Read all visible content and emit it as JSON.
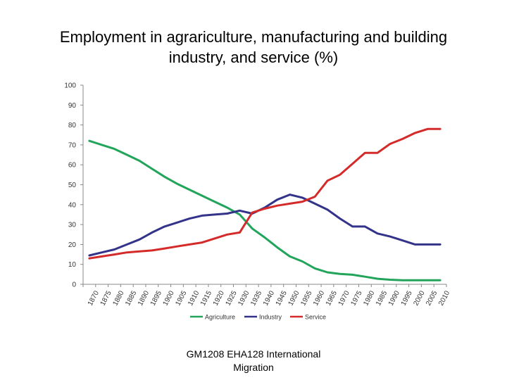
{
  "slide": {
    "title_line1": "Employment in agrariculture, manufacturing and building",
    "title_line2": "industry, and service (%)",
    "footer_line1": "GM1208 EHA128   International",
    "footer_line2": "Migration"
  },
  "chart_data": {
    "type": "line",
    "title": "Employment in agrariculture, manufacturing and building industry, and service (%)",
    "xlabel": "",
    "ylabel": "",
    "ylim": [
      0,
      100
    ],
    "yticks": [
      0,
      10,
      20,
      30,
      40,
      50,
      60,
      70,
      80,
      90,
      100
    ],
    "grid": false,
    "legend_position": "bottom",
    "x": [
      1870,
      1875,
      1880,
      1885,
      1890,
      1895,
      1900,
      1905,
      1910,
      1915,
      1920,
      1925,
      1930,
      1935,
      1940,
      1945,
      1950,
      1955,
      1960,
      1965,
      1970,
      1975,
      1980,
      1985,
      1990,
      1995,
      2000,
      2005,
      2010
    ],
    "series": [
      {
        "name": "Agriculture",
        "color": "#22a55b",
        "values": [
          72,
          70,
          68,
          65,
          62,
          58,
          54,
          50.5,
          47.5,
          44.5,
          41.5,
          38.5,
          35,
          28,
          23.5,
          18.5,
          14,
          11.5,
          8,
          6,
          5.2,
          4.8,
          3.8,
          2.8,
          2.3,
          2,
          2,
          2,
          2
        ]
      },
      {
        "name": "Industry",
        "color": "#33338a",
        "values": [
          14.5,
          16,
          17.5,
          20,
          22.5,
          26,
          29,
          31,
          33,
          34.5,
          35,
          35.5,
          37,
          35.5,
          38.5,
          42.5,
          45,
          43.5,
          40.5,
          37.5,
          33,
          29,
          29,
          25.5,
          24,
          22,
          20,
          20,
          20
        ]
      },
      {
        "name": "Service",
        "color": "#d42a2a",
        "values": [
          13,
          14,
          15,
          16,
          16.5,
          17,
          18,
          19,
          20,
          21,
          23,
          25,
          26,
          36,
          38,
          39.5,
          40.5,
          41.5,
          44,
          52,
          55,
          60.5,
          66,
          66,
          70.5,
          73,
          76,
          78,
          78
        ]
      }
    ]
  }
}
